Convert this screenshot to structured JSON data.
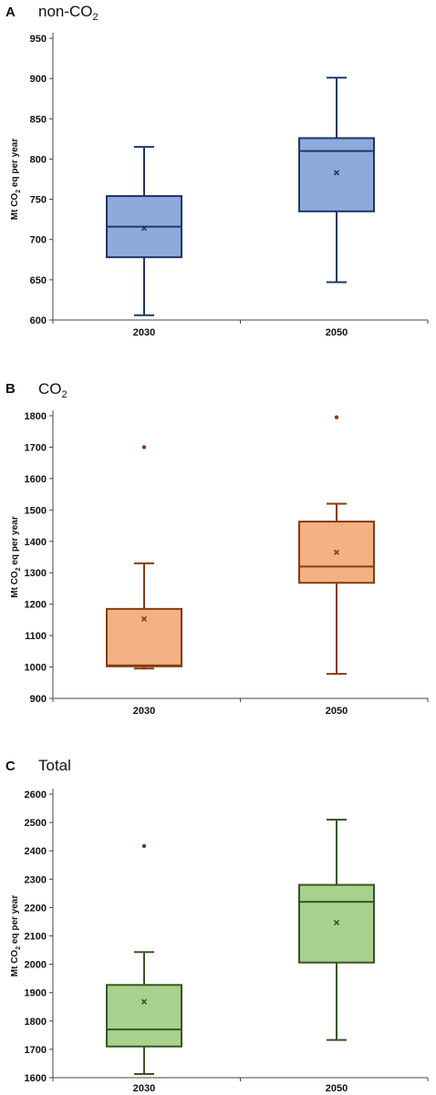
{
  "chart_data": [
    {
      "type": "box",
      "letter": "A",
      "title_main": "non-CO",
      "title_sub": "2",
      "ylabel_pre": "Mt CO",
      "ylabel_sub": "2",
      "ylabel_post": " eq per year",
      "ylim": [
        600,
        950
      ],
      "ytick_step": 50,
      "categories": [
        "2030",
        "2050"
      ],
      "boxes": [
        {
          "whisker_low": 606,
          "q1": 678,
          "median": 716,
          "q3": 754,
          "whisker_high": 815,
          "mean": 714,
          "outliers": []
        },
        {
          "whisker_low": 647,
          "q1": 735,
          "median": 810,
          "q3": 826,
          "whisker_high": 901,
          "mean": 783,
          "outliers": []
        }
      ],
      "colors": {
        "fill": "#8eaadc",
        "stroke": "#1f3864",
        "mean": "#1f3864"
      }
    },
    {
      "type": "box",
      "letter": "B",
      "title_main": "CO",
      "title_sub": "2",
      "ylabel_pre": "Mt CO",
      "ylabel_sub": "2",
      "ylabel_post": " eq per year",
      "ylim": [
        900,
        1800
      ],
      "ytick_step": 100,
      "categories": [
        "2030",
        "2050"
      ],
      "boxes": [
        {
          "whisker_low": 995,
          "q1": 1002,
          "median": 1005,
          "q3": 1185,
          "whisker_high": 1330,
          "mean": 1153,
          "outliers": [
            1700
          ]
        },
        {
          "whisker_low": 978,
          "q1": 1268,
          "median": 1320,
          "q3": 1463,
          "whisker_high": 1520,
          "mean": 1365,
          "outliers": [
            1795
          ]
        }
      ],
      "colors": {
        "fill": "#f4b183",
        "stroke": "#843c0c",
        "mean": "#843c0c"
      }
    },
    {
      "type": "box",
      "letter": "C",
      "title_main": "Total",
      "title_sub": "",
      "ylabel_pre": "Mt CO",
      "ylabel_sub": "2",
      "ylabel_post": " eq per year",
      "ylim": [
        1600,
        2600
      ],
      "ytick_step": 100,
      "categories": [
        "2030",
        "2050"
      ],
      "boxes": [
        {
          "whisker_low": 1613,
          "q1": 1710,
          "median": 1770,
          "q3": 1927,
          "whisker_high": 2043,
          "mean": 1868,
          "outliers": [
            2417
          ]
        },
        {
          "whisker_low": 1733,
          "q1": 2006,
          "median": 2220,
          "q3": 2280,
          "whisker_high": 2510,
          "mean": 2147,
          "outliers": []
        }
      ],
      "colors": {
        "fill": "#a9d18e",
        "stroke": "#375623",
        "mean": "#375623"
      }
    }
  ]
}
